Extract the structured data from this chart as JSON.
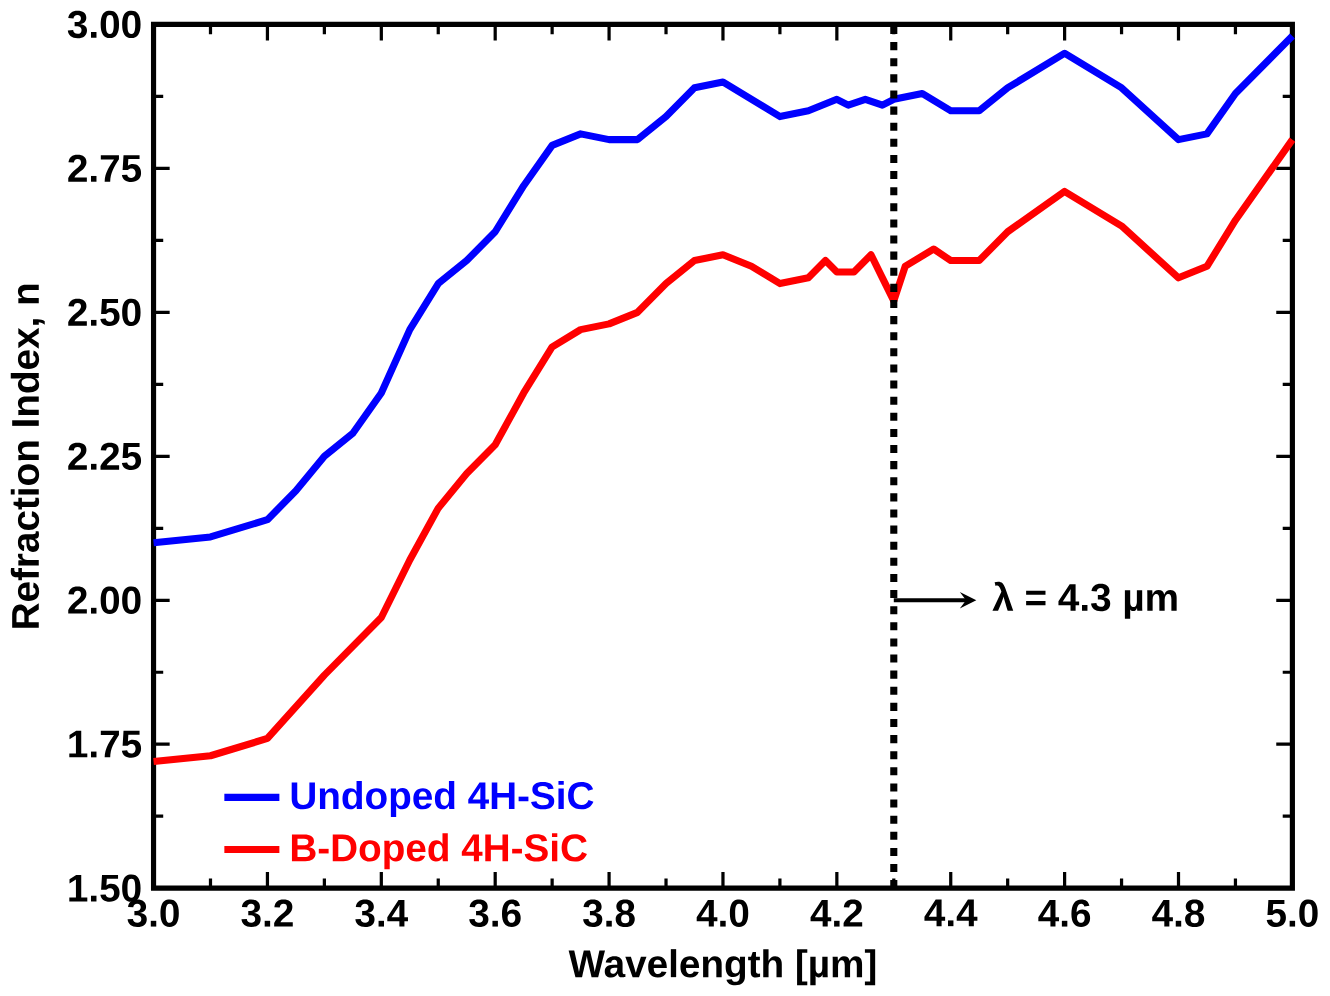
{
  "chart_data": {
    "type": "line",
    "xlabel": "Wavelength [µm]",
    "ylabel": "Refraction Index, n",
    "xlim": [
      3.0,
      5.0
    ],
    "xticks": [
      {
        "value": 3.0,
        "label": "3.0"
      },
      3.2,
      3.4,
      3.6,
      3.8,
      {
        "value": 4.0,
        "label": "4.0"
      },
      4.2,
      4.4,
      4.6,
      4.8,
      {
        "value": 5.0,
        "label": "5.0"
      }
    ],
    "ylim": [
      1.5,
      3.0
    ],
    "yticks": [
      {
        "value": 1.5,
        "label": "1.50"
      },
      1.75,
      {
        "value": 2.0,
        "label": "2.00"
      },
      2.25,
      {
        "value": 2.5,
        "label": "2.50"
      },
      2.75,
      {
        "value": 3.0,
        "label": "3.00"
      }
    ],
    "series": [
      {
        "name": "Undoped 4H-SiC",
        "color": "#0000ff",
        "x": [
          3.0,
          3.1,
          3.2,
          3.25,
          3.3,
          3.35,
          3.4,
          3.45,
          3.5,
          3.55,
          3.6,
          3.65,
          3.7,
          3.75,
          3.8,
          3.85,
          3.9,
          3.95,
          4.0,
          4.05,
          4.1,
          4.15,
          4.2,
          4.22,
          4.25,
          4.28,
          4.3,
          4.35,
          4.4,
          4.45,
          4.5,
          4.6,
          4.7,
          4.8,
          4.85,
          4.9,
          5.0
        ],
        "values": [
          2.1,
          2.11,
          2.14,
          2.19,
          2.25,
          2.29,
          2.36,
          2.47,
          2.55,
          2.59,
          2.64,
          2.72,
          2.79,
          2.81,
          2.8,
          2.8,
          2.84,
          2.89,
          2.9,
          2.87,
          2.84,
          2.85,
          2.87,
          2.86,
          2.87,
          2.86,
          2.87,
          2.88,
          2.85,
          2.85,
          2.89,
          2.95,
          2.89,
          2.8,
          2.81,
          2.88,
          2.98
        ]
      },
      {
        "name": "B-Doped 4H-SiC",
        "color": "#ff0000",
        "x": [
          3.0,
          3.1,
          3.2,
          3.3,
          3.4,
          3.45,
          3.5,
          3.55,
          3.6,
          3.65,
          3.7,
          3.75,
          3.8,
          3.85,
          3.9,
          3.95,
          4.0,
          4.05,
          4.1,
          4.15,
          4.18,
          4.2,
          4.23,
          4.26,
          4.28,
          4.3,
          4.32,
          4.37,
          4.4,
          4.45,
          4.5,
          4.6,
          4.7,
          4.8,
          4.85,
          4.9,
          5.0
        ],
        "values": [
          1.72,
          1.73,
          1.76,
          1.87,
          1.97,
          2.07,
          2.16,
          2.22,
          2.27,
          2.36,
          2.44,
          2.47,
          2.48,
          2.5,
          2.55,
          2.59,
          2.6,
          2.58,
          2.55,
          2.56,
          2.59,
          2.57,
          2.57,
          2.6,
          2.56,
          2.52,
          2.58,
          2.61,
          2.59,
          2.59,
          2.64,
          2.71,
          2.65,
          2.56,
          2.58,
          2.66,
          2.8
        ]
      }
    ],
    "ref_lines": [
      {
        "axis": "x",
        "value": 4.3,
        "color": "#000000",
        "line_style": "dotted"
      }
    ],
    "annotations": [
      {
        "text": "λ = 4.3 µm",
        "x": 4.3,
        "y": 2.0
      }
    ],
    "legend": "bottom left",
    "grid": false,
    "marker": "none",
    "line_style": "solid"
  }
}
